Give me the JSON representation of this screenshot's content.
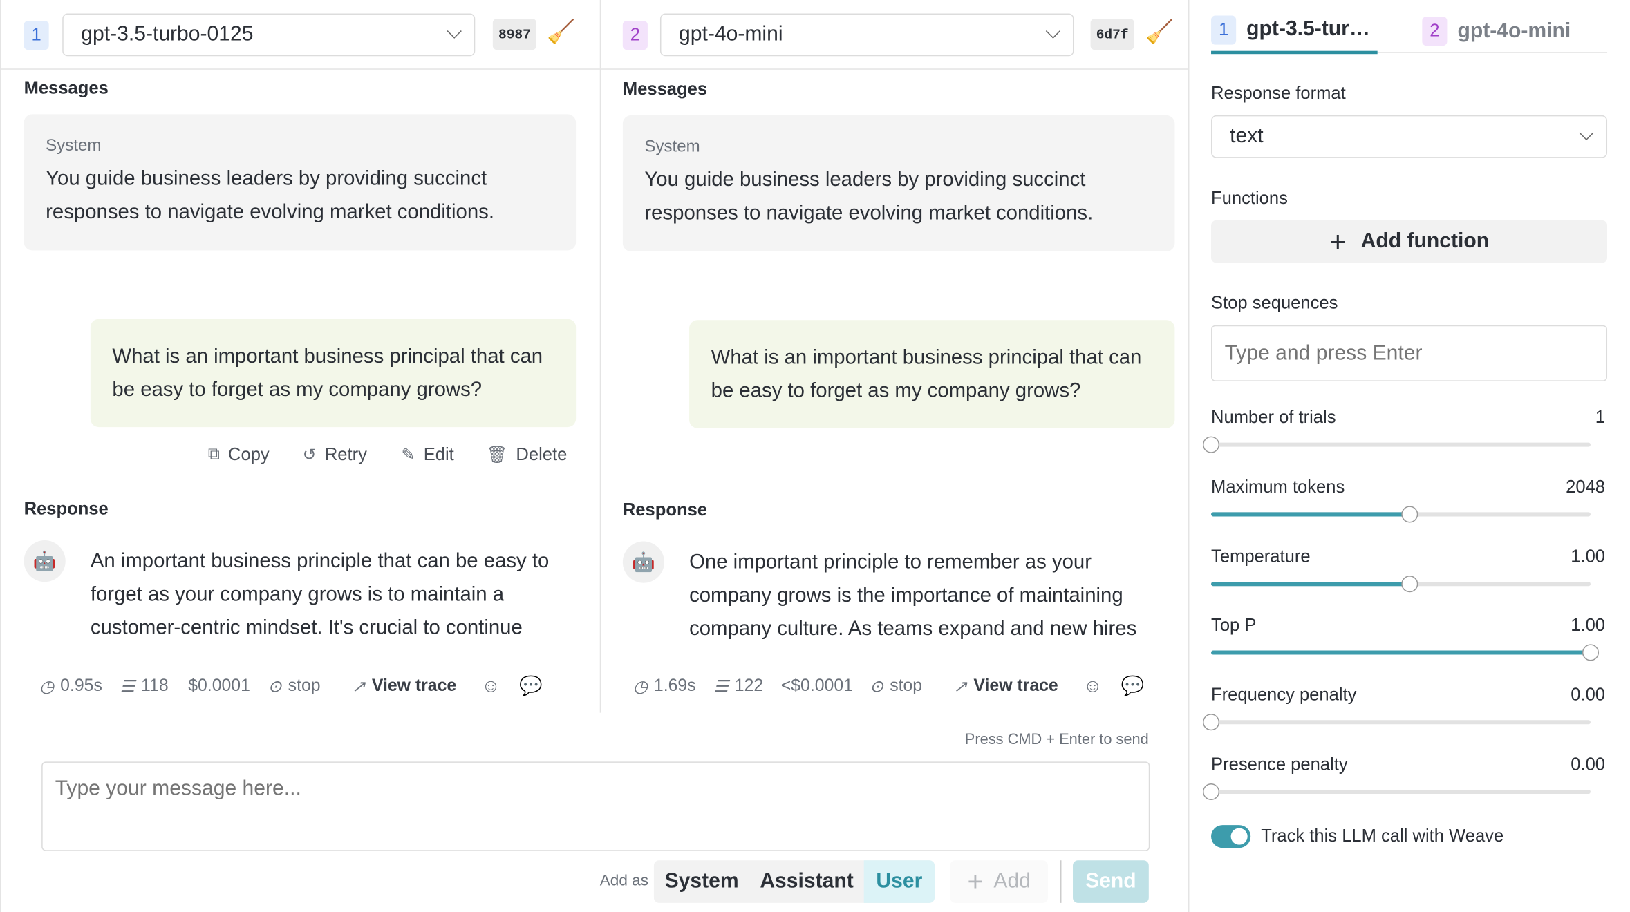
{
  "columns": [
    {
      "index": "1",
      "model": "gpt-3.5-turbo-0125",
      "hash": "8987",
      "messages_label": "Messages",
      "system": {
        "label": "System",
        "text": "You guide business leaders by providing succinct responses to navigate evolving market conditions."
      },
      "user": "What is an important business principal that can be easy to forget as my company grows?",
      "actions": [
        "Copy",
        "Retry",
        "Edit",
        "Delete"
      ],
      "response_label": "Response",
      "response": "An important business principle that can be easy to forget as your company grows is to maintain a customer-centric mindset. It's crucial to continue prioritizing the needs of your customers.",
      "meta": {
        "latency": "0.95s",
        "tokens": "118",
        "cost": "$0.0001",
        "finish": "stop",
        "view_trace": "View trace"
      }
    },
    {
      "index": "2",
      "model": "gpt-4o-mini",
      "hash": "6d7f",
      "messages_label": "Messages",
      "system": {
        "label": "System",
        "text": "You guide business leaders by providing succinct responses to navigate evolving market conditions."
      },
      "user": "What is an important business principal that can be easy to forget as my company grows?",
      "response_label": "Response",
      "response": "One important principle to remember as your company grows is the importance of maintaining company culture. As teams expand and new hires join, culture can drift.",
      "meta": {
        "latency": "1.69s",
        "tokens": "122",
        "cost": "<$0.0001",
        "finish": "stop",
        "view_trace": "View trace"
      }
    }
  ],
  "composer": {
    "hint": "Press CMD + Enter to send",
    "placeholder": "Type your message here...",
    "add_as": "Add as",
    "roles": [
      "System",
      "Assistant",
      "User"
    ],
    "selected_role": "User",
    "add": "Add",
    "send": "Send"
  },
  "settings": {
    "tabs": [
      {
        "index": "1",
        "label": "gpt-3.5-tur…",
        "active": true
      },
      {
        "index": "2",
        "label": "gpt-4o-mini",
        "active": false
      }
    ],
    "response_format_label": "Response format",
    "response_format": "text",
    "functions_label": "Functions",
    "add_function": "Add function",
    "stop_label": "Stop sequences",
    "stop_placeholder": "Type and press Enter",
    "sliders": [
      {
        "label": "Number of trials",
        "value": "1",
        "fraction": 0
      },
      {
        "label": "Maximum tokens",
        "value": "2048",
        "fraction": 0.522
      },
      {
        "label": "Temperature",
        "value": "1.00",
        "fraction": 0.522
      },
      {
        "label": "Top P",
        "value": "1.00",
        "fraction": 1
      },
      {
        "label": "Frequency penalty",
        "value": "0.00",
        "fraction": 0
      },
      {
        "label": "Presence penalty",
        "value": "0.00",
        "fraction": 0
      }
    ],
    "track_label": "Track this LLM call with Weave",
    "track_enabled": true
  },
  "colors": {
    "accent": "#3d9cac",
    "badge1_bg": "#e3edfc",
    "badge1_fg": "#3a6fd8",
    "badge2_bg": "#f3e3fb",
    "badge2_fg": "#a040c8",
    "user_bubble": "#f3f7e9",
    "send_bg": "#bfe1e6"
  }
}
